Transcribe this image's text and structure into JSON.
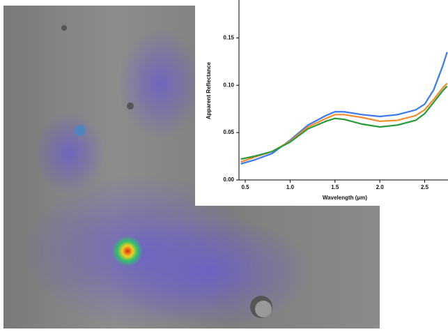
{
  "chart_data": {
    "type": "line",
    "xlabel": "Wavelength (μm)",
    "ylabel": "Apparent Reflectance",
    "x": [
      0.45,
      0.6,
      0.8,
      1.0,
      1.2,
      1.4,
      1.5,
      1.6,
      1.8,
      2.0,
      2.2,
      2.4,
      2.5,
      2.6,
      2.7,
      2.75
    ],
    "series": [
      {
        "color": "#3b78f0",
        "values": [
          0.017,
          0.021,
          0.028,
          0.042,
          0.058,
          0.068,
          0.072,
          0.072,
          0.069,
          0.067,
          0.069,
          0.074,
          0.08,
          0.095,
          0.12,
          0.135
        ]
      },
      {
        "color": "#f58a2a",
        "values": [
          0.019,
          0.024,
          0.03,
          0.041,
          0.056,
          0.065,
          0.069,
          0.069,
          0.066,
          0.062,
          0.063,
          0.068,
          0.074,
          0.085,
          0.097,
          0.102
        ]
      },
      {
        "color": "#2a9a3a",
        "values": [
          0.022,
          0.025,
          0.03,
          0.04,
          0.054,
          0.062,
          0.065,
          0.064,
          0.059,
          0.056,
          0.058,
          0.063,
          0.07,
          0.082,
          0.094,
          0.099
        ]
      }
    ],
    "xlim": [
      0.43,
      2.76
    ],
    "ylim": [
      0,
      0.19
    ],
    "xticks": [
      0.5,
      {
        "value": 1,
        "label": "1.0"
      },
      1.5,
      {
        "value": 2,
        "label": "2.0"
      },
      2.5
    ],
    "yticks": [
      {
        "value": 0,
        "label": "0.00"
      },
      {
        "value": 0.05,
        "label": "0.05"
      },
      {
        "value": 0.1,
        "label": "0.10"
      },
      {
        "value": 0.15,
        "label": "0.15"
      }
    ]
  }
}
